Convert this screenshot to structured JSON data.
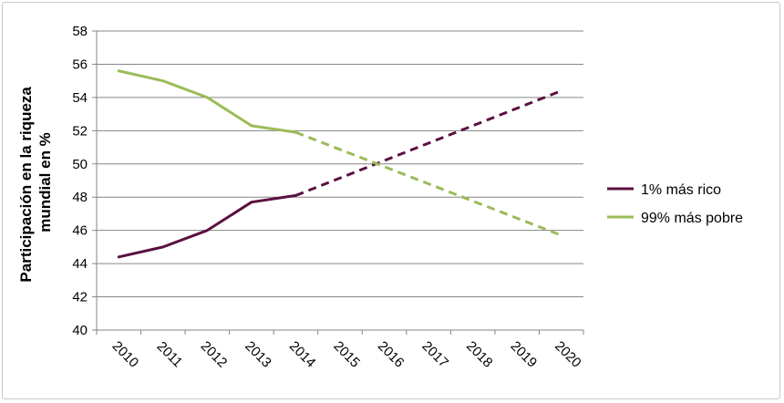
{
  "chart_data": {
    "type": "line",
    "title": "",
    "xlabel": "",
    "ylabel_lines": [
      "Participación en la riqueza",
      "mundial en %"
    ],
    "x": [
      "2010",
      "2011",
      "2012",
      "2013",
      "2014",
      "2015",
      "2016",
      "2017",
      "2018",
      "2019",
      "2020"
    ],
    "ylim": [
      40,
      58
    ],
    "yticks": [
      "40",
      "42",
      "44",
      "46",
      "48",
      "50",
      "52",
      "54",
      "56",
      "58"
    ],
    "grid": true,
    "legend_position": "right",
    "series": [
      {
        "name": "1% más rico",
        "color": "#5b1040",
        "actual": [
          44.4,
          45.0,
          46.0,
          47.7,
          48.1
        ],
        "projected": [
          48.1,
          54.4
        ]
      },
      {
        "name": "99% más pobre",
        "color": "#9bbb59",
        "actual": [
          55.6,
          55.0,
          54.0,
          52.3,
          51.9
        ],
        "projected": [
          51.9,
          45.7
        ]
      }
    ]
  }
}
